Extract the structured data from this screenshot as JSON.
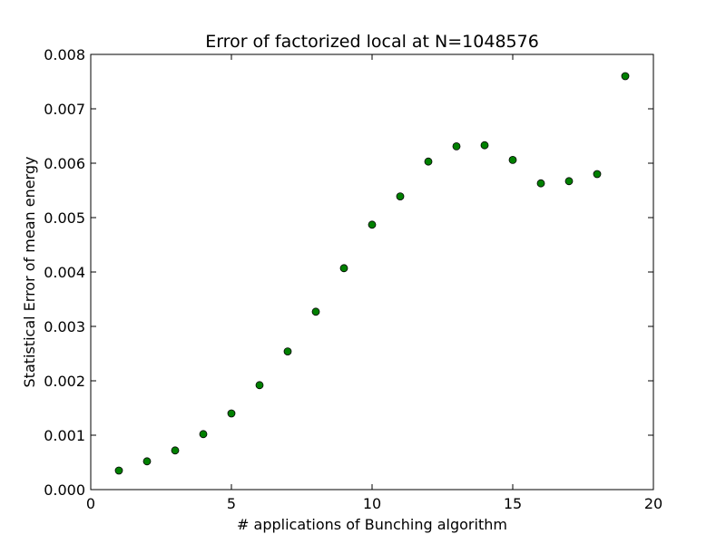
{
  "chart_data": {
    "type": "scatter",
    "title": "Error of factorized local at N=1048576",
    "xlabel": "# applications of Bunching algorithm",
    "ylabel": "Statistical Error of mean energy",
    "xlim": [
      0,
      20
    ],
    "ylim": [
      0,
      0.008
    ],
    "xticks": [
      "0",
      "5",
      "10",
      "15",
      "20"
    ],
    "yticks": [
      "0.000",
      "0.001",
      "0.002",
      "0.003",
      "0.004",
      "0.005",
      "0.006",
      "0.007",
      "0.008"
    ],
    "grid": false,
    "marker_color": "#008000",
    "marker_edge_color": "#000000",
    "series": [
      {
        "x": [
          1,
          2,
          3,
          4,
          5,
          6,
          7,
          8,
          9,
          10,
          11,
          12,
          13,
          14,
          15,
          16,
          17,
          18,
          19
        ],
        "y": [
          0.00035,
          0.00052,
          0.00072,
          0.00102,
          0.0014,
          0.00192,
          0.00254,
          0.00327,
          0.00407,
          0.00487,
          0.00539,
          0.00603,
          0.00631,
          0.00633,
          0.00606,
          0.00563,
          0.00567,
          0.0058,
          0.0076
        ]
      }
    ]
  }
}
